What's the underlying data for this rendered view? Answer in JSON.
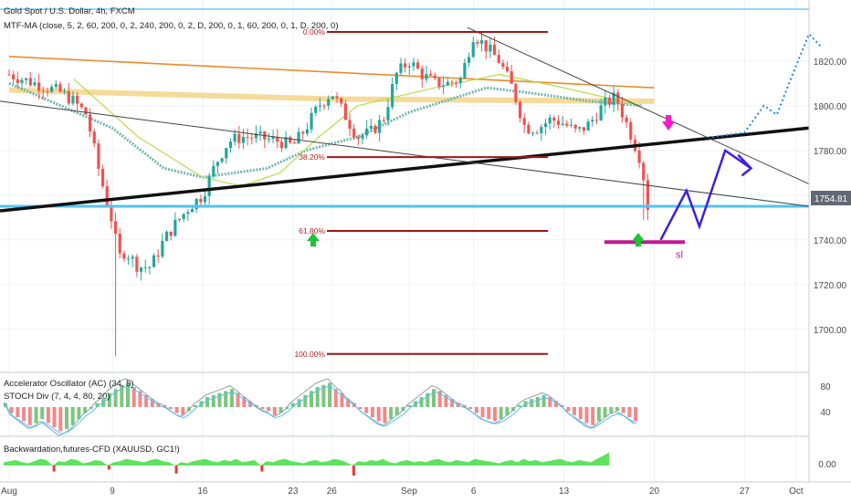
{
  "header": {
    "symbol_line": "Gold Spot / U.S. Dollar, 4h, FXCM",
    "indicator_line": "MTF-MA (close, 5, 2, 60, 200, 0, 2, 240, 200, 0, 2, D, 200, 0, 1, 60, 200, 0, 1, D, 200, 0)"
  },
  "colors": {
    "up": "#26a69a",
    "down": "#ef5350",
    "fib": "#a31515",
    "trendline": "#111111",
    "support": "#4fc3f7",
    "projection": "#3d1fe0",
    "forecast_dots": "#1e88e5",
    "arrow_up": "#22c13a",
    "arrow_down": "#ff19c8",
    "sl": "#c2188f"
  },
  "chart_data": {
    "type": "candlestick",
    "title": "Gold Spot / U.S. Dollar, 4h, FXCM",
    "xlabel": "",
    "ylabel": "",
    "ylim": [
      1684,
      1844
    ],
    "y_ticks": [
      "1820.00",
      "1800.00",
      "1780.00",
      "1760.00",
      "1740.00",
      "1720.00",
      "1700.00"
    ],
    "x_ticks": [
      "Aug",
      "9",
      "16",
      "23",
      "26",
      "Sep",
      "6",
      "13",
      "20",
      "27",
      "Oct"
    ],
    "x_tick_days": [
      0,
      8,
      15,
      22,
      25,
      31,
      36,
      43,
      50,
      57,
      61
    ],
    "last_price_label": "1754.81",
    "grid": true,
    "price_path": [
      [
        0,
        1814
      ],
      [
        1,
        1812
      ],
      [
        2,
        1810
      ],
      [
        3,
        1808
      ],
      [
        4,
        1806
      ],
      [
        5,
        1802
      ],
      [
        6,
        1796
      ],
      [
        7,
        1770
      ],
      [
        8,
        1748
      ],
      [
        8.5,
        1732
      ],
      [
        9,
        1735
      ],
      [
        10,
        1728
      ],
      [
        11,
        1728
      ],
      [
        12,
        1740
      ],
      [
        13,
        1748
      ],
      [
        14,
        1755
      ],
      [
        15,
        1760
      ],
      [
        16,
        1774
      ],
      [
        17,
        1784
      ],
      [
        18,
        1786
      ],
      [
        19,
        1786
      ],
      [
        20,
        1785
      ],
      [
        21,
        1784
      ],
      [
        22,
        1782
      ],
      [
        23,
        1790
      ],
      [
        24,
        1800
      ],
      [
        25,
        1806
      ],
      [
        26,
        1796
      ],
      [
        27,
        1786
      ],
      [
        28,
        1788
      ],
      [
        29,
        1794
      ],
      [
        30,
        1814
      ],
      [
        31,
        1820
      ],
      [
        32,
        1814
      ],
      [
        33,
        1810
      ],
      [
        34,
        1810
      ],
      [
        35,
        1812
      ],
      [
        36,
        1832
      ],
      [
        37,
        1826
      ],
      [
        38,
        1820
      ],
      [
        39,
        1808
      ],
      [
        40,
        1790
      ],
      [
        41,
        1790
      ],
      [
        42,
        1794
      ],
      [
        43,
        1792
      ],
      [
        44,
        1788
      ],
      [
        45,
        1792
      ],
      [
        46,
        1800
      ],
      [
        47,
        1804
      ],
      [
        48,
        1790
      ],
      [
        49,
        1775
      ],
      [
        49.5,
        1755
      ]
    ],
    "annotations": {
      "fib_levels": [
        {
          "label": "0.00%",
          "price": 1833
        },
        {
          "label": "38.20%",
          "price": 1777
        },
        {
          "label": "61.80%",
          "price": 1744
        },
        {
          "label": "100.00%",
          "price": 1689
        }
      ],
      "sl_label": "sl",
      "sl_price": 1739
    },
    "moving_averages": [
      {
        "kind": "orange",
        "points": [
          [
            0,
            1822
          ],
          [
            50,
            1808
          ]
        ]
      },
      {
        "kind": "tan",
        "points": [
          [
            0,
            1807
          ],
          [
            25,
            1803
          ],
          [
            50,
            1802
          ]
        ]
      },
      {
        "kind": "teal",
        "points": [
          [
            0,
            1810
          ],
          [
            8,
            1790
          ],
          [
            12,
            1772
          ],
          [
            15,
            1768
          ],
          [
            20,
            1772
          ],
          [
            23,
            1780
          ],
          [
            27,
            1786
          ],
          [
            31,
            1797
          ],
          [
            37,
            1808
          ],
          [
            40,
            1806
          ],
          [
            45,
            1802
          ],
          [
            49,
            1800
          ]
        ]
      },
      {
        "kind": "lime",
        "points": [
          [
            5,
            1812
          ],
          [
            10,
            1786
          ],
          [
            15,
            1768
          ],
          [
            18,
            1764
          ],
          [
            21,
            1770
          ],
          [
            24,
            1786
          ],
          [
            27,
            1800
          ],
          [
            33,
            1808
          ],
          [
            38,
            1814
          ],
          [
            43,
            1808
          ],
          [
            49,
            1800
          ]
        ]
      }
    ],
    "forecast": {
      "zigzag": [
        [
          50.5,
          1740
        ],
        [
          52.5,
          1762
        ],
        [
          53.5,
          1746
        ],
        [
          55.5,
          1780
        ],
        [
          57.5,
          1772
        ],
        [
          56.5,
          1778
        ]
      ],
      "dotted_path": [
        [
          54.5,
          1786
        ],
        [
          57,
          1788
        ],
        [
          58.5,
          1800
        ],
        [
          59.5,
          1796
        ],
        [
          61,
          1818
        ],
        [
          62,
          1832
        ],
        [
          63,
          1826
        ]
      ]
    }
  },
  "ac_panel": {
    "label_1": "Accelerator Oscillator (AC) (34, 5)",
    "label_2": "STOCH Div (7, 4, 4, 80, 20)",
    "ticks": [
      "80",
      "40"
    ],
    "bars": [
      2,
      -3,
      -5,
      -7,
      -9,
      -8,
      -6,
      -8,
      -10,
      -12,
      -11,
      -9,
      -6,
      -3,
      -1,
      2,
      4,
      7,
      9,
      11,
      12,
      10,
      8,
      6,
      4,
      2,
      1,
      -1,
      -3,
      -4,
      -2,
      1,
      3,
      5,
      6,
      7,
      8,
      9,
      7,
      5,
      3,
      1,
      -1,
      -2,
      -4,
      -3,
      -1,
      2,
      4,
      6,
      8,
      10,
      11,
      12,
      9,
      7,
      4,
      2,
      -1,
      -3,
      -5,
      -7,
      -8,
      -6,
      -4,
      -2,
      1,
      3,
      5,
      7,
      9,
      8,
      6,
      4,
      2,
      1,
      -1,
      -3,
      -5,
      -6,
      -7,
      -6,
      -4,
      -2,
      1,
      3,
      4,
      5,
      6,
      5,
      3,
      1,
      -2,
      -4,
      -6,
      -8,
      -9,
      -7,
      -5,
      -3,
      -2,
      -3,
      -5,
      -7
    ]
  },
  "bw_panel": {
    "label": "Backwardation,futures-CFD (XAUUSD, GC1!)",
    "tick": "0.00",
    "bars": [
      3,
      4,
      5,
      3,
      2,
      4,
      6,
      5,
      -3,
      4,
      3,
      6,
      5,
      2,
      3,
      5,
      4,
      -2,
      3,
      4,
      6,
      5,
      4,
      3,
      5,
      6,
      4,
      3,
      -4,
      3,
      2,
      4,
      5,
      6,
      4,
      3,
      5,
      4,
      6,
      3,
      4,
      5,
      -3,
      4,
      3,
      5,
      6,
      4,
      3,
      2,
      4,
      5,
      3,
      4,
      6,
      5,
      3,
      -5,
      4,
      3,
      5,
      4,
      6,
      3,
      2,
      4,
      5,
      3,
      4,
      3,
      5,
      6,
      4,
      3,
      5,
      4,
      3,
      6,
      5,
      4,
      3,
      2,
      4,
      5,
      3,
      6,
      4,
      5,
      3,
      4,
      5,
      6,
      4,
      3,
      5,
      4,
      3,
      6,
      9,
      12
    ]
  }
}
